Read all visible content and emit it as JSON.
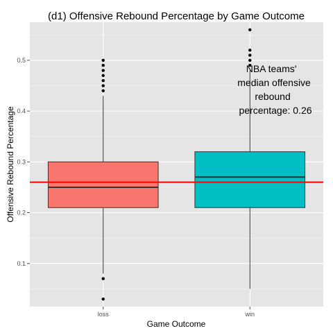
{
  "chart_data": {
    "type": "box",
    "title": "(d1) Offensive Rebound Percentage by Game Outcome",
    "xlabel": "Game Outcome",
    "ylabel": "Offensive Rebound Percentage",
    "categories": [
      "loss",
      "win"
    ],
    "ylim": [
      0.015,
      0.575
    ],
    "y_ticks": [
      0.1,
      0.2,
      0.3,
      0.4,
      0.5
    ],
    "y_tick_labels": [
      "0.1",
      "0.2",
      "0.3",
      "0.4",
      "0.5"
    ],
    "grid": true,
    "boxes": [
      {
        "name": "loss",
        "color": "#F8766D",
        "q1": 0.21,
        "median": 0.25,
        "q3": 0.3,
        "whisker_low": 0.08,
        "whisker_high": 0.43,
        "outliers": [
          0.03,
          0.07,
          0.44,
          0.45,
          0.46,
          0.47,
          0.48,
          0.49,
          0.5
        ]
      },
      {
        "name": "win",
        "color": "#00BFC4",
        "q1": 0.21,
        "median": 0.27,
        "q3": 0.32,
        "whisker_low": 0.05,
        "whisker_high": 0.48,
        "outliers": [
          0.49,
          0.5,
          0.51,
          0.52,
          0.56
        ]
      }
    ],
    "reference_line": {
      "value": 0.26,
      "color": "#FF0000"
    },
    "annotation": [
      "NBA teams'",
      "median offensive",
      "rebound",
      "percentage: 0.26"
    ]
  }
}
